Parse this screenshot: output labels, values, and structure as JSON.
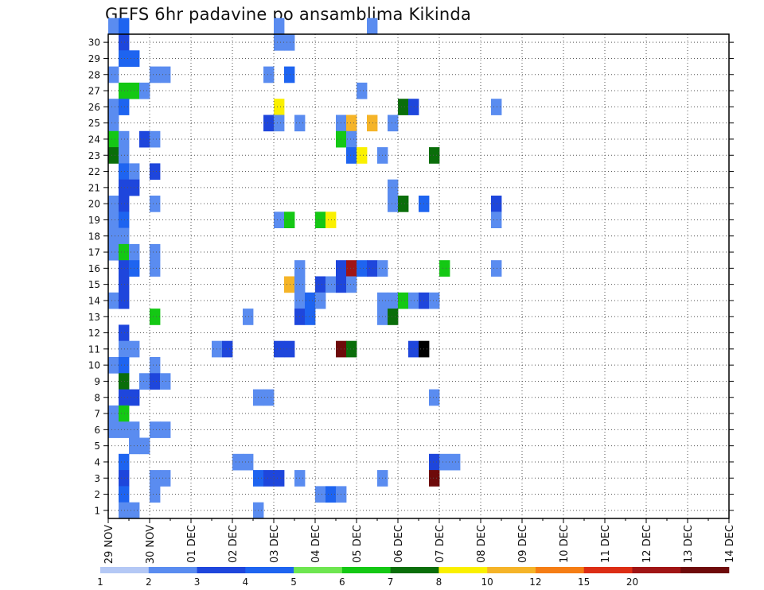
{
  "chart_data": {
    "type": "heatmap",
    "title": "GEFS 6hr padavine po ansamblima Kikinda",
    "xlabel": "",
    "ylabel": "",
    "y_ticks": [
      "1",
      "2",
      "3",
      "4",
      "5",
      "6",
      "7",
      "8",
      "9",
      "10",
      "11",
      "12",
      "13",
      "14",
      "15",
      "16",
      "17",
      "18",
      "19",
      "20",
      "21",
      "22",
      "23",
      "24",
      "25",
      "26",
      "27",
      "28",
      "29",
      "30"
    ],
    "x_ticks": [
      "29 NOV",
      "30 NOV",
      "01 DEC",
      "02 DEC",
      "03 DEC",
      "04 DEC",
      "05 DEC",
      "06 DEC",
      "07 DEC",
      "08 DEC",
      "09 DEC",
      "10 DEC",
      "11 DEC",
      "12 DEC",
      "13 DEC",
      "14 DEC"
    ],
    "x_unit": "6-hour step from 29 NOV 00z",
    "legend": {
      "labels": [
        "1",
        "2",
        "3",
        "4",
        "5",
        "6",
        "7",
        "8",
        "10",
        "12",
        "15",
        "20"
      ],
      "colors": [
        "#b4c8f5",
        "#5a8cf0",
        "#1e46dc",
        "#1e64f0",
        "#6ee650",
        "#14c814",
        "#0a6e0a",
        "#faf000",
        "#f5b428",
        "#f57d14",
        "#dc2d14",
        "#a01414",
        "#6e0a0a"
      ]
    },
    "cells": [
      [
        30,
        0,
        1
      ],
      [
        30,
        1,
        3
      ],
      [
        30,
        16,
        1
      ],
      [
        30,
        25,
        1
      ],
      [
        29,
        1,
        2
      ],
      [
        29,
        16,
        1
      ],
      [
        29,
        17,
        1
      ],
      [
        28,
        1,
        3
      ],
      [
        28,
        2,
        3
      ],
      [
        27,
        0,
        1
      ],
      [
        27,
        4,
        1
      ],
      [
        27,
        5,
        1
      ],
      [
        27,
        15,
        1
      ],
      [
        27,
        17,
        3
      ],
      [
        26,
        1,
        5
      ],
      [
        26,
        2,
        5
      ],
      [
        26,
        3,
        1
      ],
      [
        26,
        24,
        1
      ],
      [
        25,
        0,
        1
      ],
      [
        25,
        1,
        3
      ],
      [
        25,
        16,
        7
      ],
      [
        25,
        28,
        6
      ],
      [
        25,
        29,
        2
      ],
      [
        25,
        37,
        1
      ],
      [
        24,
        0,
        1
      ],
      [
        24,
        15,
        2
      ],
      [
        24,
        16,
        1
      ],
      [
        24,
        18,
        1
      ],
      [
        24,
        22,
        1
      ],
      [
        24,
        23,
        8
      ],
      [
        24,
        25,
        8
      ],
      [
        24,
        27,
        1
      ],
      [
        23,
        0,
        5
      ],
      [
        23,
        1,
        1
      ],
      [
        23,
        3,
        2
      ],
      [
        23,
        4,
        1
      ],
      [
        23,
        22,
        5
      ],
      [
        23,
        23,
        1
      ],
      [
        22,
        0,
        6
      ],
      [
        22,
        1,
        1
      ],
      [
        22,
        23,
        3
      ],
      [
        22,
        24,
        7
      ],
      [
        22,
        26,
        1
      ],
      [
        22,
        31,
        6
      ],
      [
        21,
        1,
        3
      ],
      [
        21,
        2,
        1
      ],
      [
        21,
        4,
        2
      ],
      [
        20,
        1,
        2
      ],
      [
        20,
        2,
        2
      ],
      [
        20,
        27,
        1
      ],
      [
        19,
        0,
        1
      ],
      [
        19,
        1,
        2
      ],
      [
        19,
        4,
        1
      ],
      [
        19,
        27,
        1
      ],
      [
        19,
        28,
        6
      ],
      [
        19,
        30,
        3
      ],
      [
        19,
        37,
        2
      ],
      [
        18,
        0,
        1
      ],
      [
        18,
        1,
        3
      ],
      [
        18,
        16,
        1
      ],
      [
        18,
        17,
        5
      ],
      [
        18,
        20,
        5
      ],
      [
        18,
        21,
        7
      ],
      [
        18,
        37,
        1
      ],
      [
        17,
        0,
        1
      ],
      [
        17,
        1,
        1
      ],
      [
        16,
        0,
        1
      ],
      [
        16,
        1,
        5
      ],
      [
        16,
        2,
        1
      ],
      [
        16,
        4,
        1
      ],
      [
        15,
        1,
        2
      ],
      [
        15,
        2,
        3
      ],
      [
        15,
        4,
        1
      ],
      [
        15,
        18,
        1
      ],
      [
        15,
        22,
        2
      ],
      [
        15,
        23,
        11
      ],
      [
        15,
        24,
        3
      ],
      [
        15,
        25,
        2
      ],
      [
        15,
        26,
        1
      ],
      [
        15,
        32,
        5
      ],
      [
        15,
        37,
        1
      ],
      [
        14,
        1,
        2
      ],
      [
        14,
        17,
        8
      ],
      [
        14,
        18,
        1
      ],
      [
        14,
        20,
        2
      ],
      [
        14,
        21,
        1
      ],
      [
        14,
        22,
        2
      ],
      [
        14,
        23,
        1
      ],
      [
        13,
        0,
        1
      ],
      [
        13,
        1,
        2
      ],
      [
        13,
        18,
        1
      ],
      [
        13,
        19,
        3
      ],
      [
        13,
        20,
        1
      ],
      [
        13,
        26,
        1
      ],
      [
        13,
        27,
        1
      ],
      [
        13,
        28,
        5
      ],
      [
        13,
        29,
        1
      ],
      [
        13,
        30,
        2
      ],
      [
        13,
        31,
        1
      ],
      [
        12,
        4,
        5
      ],
      [
        12,
        13,
        1
      ],
      [
        12,
        18,
        2
      ],
      [
        12,
        19,
        3
      ],
      [
        12,
        26,
        1
      ],
      [
        12,
        27,
        6
      ],
      [
        11,
        1,
        2
      ],
      [
        10,
        1,
        1
      ],
      [
        10,
        2,
        1
      ],
      [
        10,
        10,
        1
      ],
      [
        10,
        11,
        2
      ],
      [
        10,
        16,
        2
      ],
      [
        10,
        17,
        2
      ],
      [
        10,
        22,
        12
      ],
      [
        10,
        23,
        6
      ],
      [
        10,
        29,
        2
      ],
      [
        10,
        30,
        13
      ],
      [
        9,
        0,
        1
      ],
      [
        9,
        1,
        3
      ],
      [
        9,
        4,
        1
      ],
      [
        8,
        1,
        6
      ],
      [
        8,
        3,
        1
      ],
      [
        8,
        4,
        2
      ],
      [
        8,
        5,
        1
      ],
      [
        7,
        1,
        2
      ],
      [
        7,
        2,
        2
      ],
      [
        7,
        14,
        1
      ],
      [
        7,
        15,
        1
      ],
      [
        7,
        31,
        1
      ],
      [
        6,
        0,
        1
      ],
      [
        6,
        1,
        5
      ],
      [
        5,
        0,
        1
      ],
      [
        5,
        1,
        1
      ],
      [
        5,
        2,
        1
      ],
      [
        5,
        4,
        1
      ],
      [
        5,
        5,
        1
      ],
      [
        4,
        2,
        1
      ],
      [
        4,
        3,
        1
      ],
      [
        3,
        1,
        3
      ],
      [
        3,
        12,
        1
      ],
      [
        3,
        13,
        1
      ],
      [
        3,
        31,
        2
      ],
      [
        3,
        32,
        1
      ],
      [
        3,
        33,
        1
      ],
      [
        2,
        1,
        2
      ],
      [
        2,
        4,
        1
      ],
      [
        2,
        5,
        1
      ],
      [
        2,
        14,
        3
      ],
      [
        2,
        15,
        2
      ],
      [
        2,
        16,
        2
      ],
      [
        2,
        18,
        1
      ],
      [
        2,
        26,
        1
      ],
      [
        2,
        31,
        12
      ],
      [
        1,
        1,
        3
      ],
      [
        1,
        4,
        1
      ],
      [
        1,
        20,
        1
      ],
      [
        1,
        21,
        3
      ],
      [
        1,
        22,
        1
      ],
      [
        0,
        1,
        1
      ],
      [
        0,
        2,
        1
      ],
      [
        0,
        14,
        1
      ]
    ]
  }
}
